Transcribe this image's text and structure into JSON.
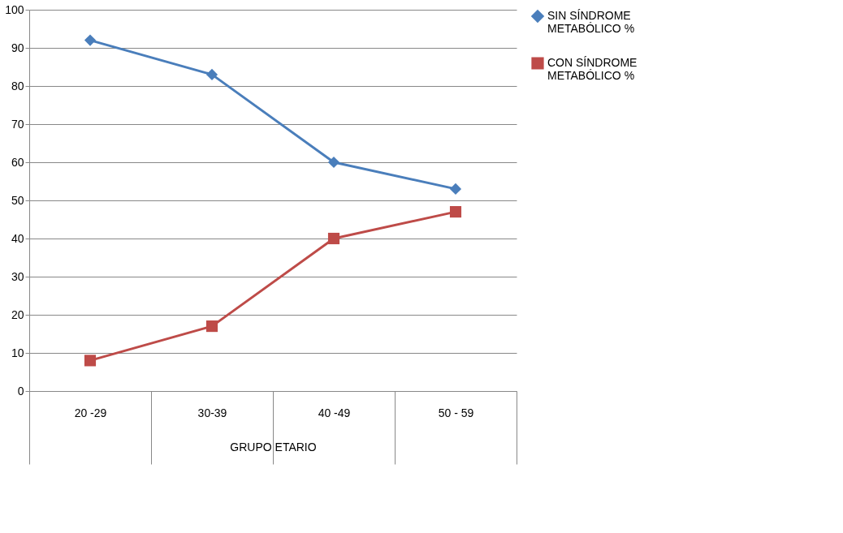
{
  "chart_data": {
    "type": "line",
    "xlabel": "GRUPO ETARIO",
    "categories": [
      "20 -29",
      "30-39",
      "40 -49",
      "50 - 59"
    ],
    "series": [
      {
        "name": "SIN SÍNDROME METABÓLICO %",
        "color": "#4a7ebb",
        "marker": "diamond",
        "values": [
          92,
          83,
          60,
          53
        ]
      },
      {
        "name": "CON SÍNDROME METABÓLICO %",
        "color": "#be4b48",
        "marker": "square",
        "values": [
          8,
          17,
          40,
          47
        ]
      }
    ],
    "ylim": [
      0,
      100
    ],
    "yticks": [
      0,
      10,
      20,
      30,
      40,
      50,
      60,
      70,
      80,
      90,
      100
    ],
    "grid": "y",
    "legend": "right",
    "line_style": "solid"
  }
}
